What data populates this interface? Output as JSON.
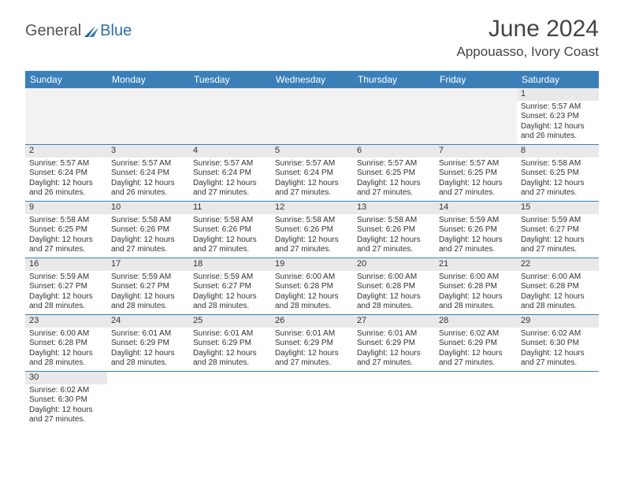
{
  "logo": {
    "text1": "General",
    "text2": "Blue"
  },
  "title": "June 2024",
  "location": "Appouasso, Ivory Coast",
  "colors": {
    "header_bg": "#3b7fb9",
    "header_text": "#ffffff",
    "daynum_bg": "#e9e9e9",
    "border": "#3b7fb9",
    "logo_gray": "#555555",
    "logo_blue": "#2f6fa8",
    "text": "#333333",
    "bg": "#ffffff"
  },
  "days_of_week": [
    "Sunday",
    "Monday",
    "Tuesday",
    "Wednesday",
    "Thursday",
    "Friday",
    "Saturday"
  ],
  "first_day_column": 6,
  "num_days": 30,
  "cells": {
    "1": {
      "sunrise": "Sunrise: 5:57 AM",
      "sunset": "Sunset: 6:23 PM",
      "d1": "Daylight: 12 hours",
      "d2": "and 26 minutes."
    },
    "2": {
      "sunrise": "Sunrise: 5:57 AM",
      "sunset": "Sunset: 6:24 PM",
      "d1": "Daylight: 12 hours",
      "d2": "and 26 minutes."
    },
    "3": {
      "sunrise": "Sunrise: 5:57 AM",
      "sunset": "Sunset: 6:24 PM",
      "d1": "Daylight: 12 hours",
      "d2": "and 26 minutes."
    },
    "4": {
      "sunrise": "Sunrise: 5:57 AM",
      "sunset": "Sunset: 6:24 PM",
      "d1": "Daylight: 12 hours",
      "d2": "and 27 minutes."
    },
    "5": {
      "sunrise": "Sunrise: 5:57 AM",
      "sunset": "Sunset: 6:24 PM",
      "d1": "Daylight: 12 hours",
      "d2": "and 27 minutes."
    },
    "6": {
      "sunrise": "Sunrise: 5:57 AM",
      "sunset": "Sunset: 6:25 PM",
      "d1": "Daylight: 12 hours",
      "d2": "and 27 minutes."
    },
    "7": {
      "sunrise": "Sunrise: 5:57 AM",
      "sunset": "Sunset: 6:25 PM",
      "d1": "Daylight: 12 hours",
      "d2": "and 27 minutes."
    },
    "8": {
      "sunrise": "Sunrise: 5:58 AM",
      "sunset": "Sunset: 6:25 PM",
      "d1": "Daylight: 12 hours",
      "d2": "and 27 minutes."
    },
    "9": {
      "sunrise": "Sunrise: 5:58 AM",
      "sunset": "Sunset: 6:25 PM",
      "d1": "Daylight: 12 hours",
      "d2": "and 27 minutes."
    },
    "10": {
      "sunrise": "Sunrise: 5:58 AM",
      "sunset": "Sunset: 6:26 PM",
      "d1": "Daylight: 12 hours",
      "d2": "and 27 minutes."
    },
    "11": {
      "sunrise": "Sunrise: 5:58 AM",
      "sunset": "Sunset: 6:26 PM",
      "d1": "Daylight: 12 hours",
      "d2": "and 27 minutes."
    },
    "12": {
      "sunrise": "Sunrise: 5:58 AM",
      "sunset": "Sunset: 6:26 PM",
      "d1": "Daylight: 12 hours",
      "d2": "and 27 minutes."
    },
    "13": {
      "sunrise": "Sunrise: 5:58 AM",
      "sunset": "Sunset: 6:26 PM",
      "d1": "Daylight: 12 hours",
      "d2": "and 27 minutes."
    },
    "14": {
      "sunrise": "Sunrise: 5:59 AM",
      "sunset": "Sunset: 6:26 PM",
      "d1": "Daylight: 12 hours",
      "d2": "and 27 minutes."
    },
    "15": {
      "sunrise": "Sunrise: 5:59 AM",
      "sunset": "Sunset: 6:27 PM",
      "d1": "Daylight: 12 hours",
      "d2": "and 27 minutes."
    },
    "16": {
      "sunrise": "Sunrise: 5:59 AM",
      "sunset": "Sunset: 6:27 PM",
      "d1": "Daylight: 12 hours",
      "d2": "and 28 minutes."
    },
    "17": {
      "sunrise": "Sunrise: 5:59 AM",
      "sunset": "Sunset: 6:27 PM",
      "d1": "Daylight: 12 hours",
      "d2": "and 28 minutes."
    },
    "18": {
      "sunrise": "Sunrise: 5:59 AM",
      "sunset": "Sunset: 6:27 PM",
      "d1": "Daylight: 12 hours",
      "d2": "and 28 minutes."
    },
    "19": {
      "sunrise": "Sunrise: 6:00 AM",
      "sunset": "Sunset: 6:28 PM",
      "d1": "Daylight: 12 hours",
      "d2": "and 28 minutes."
    },
    "20": {
      "sunrise": "Sunrise: 6:00 AM",
      "sunset": "Sunset: 6:28 PM",
      "d1": "Daylight: 12 hours",
      "d2": "and 28 minutes."
    },
    "21": {
      "sunrise": "Sunrise: 6:00 AM",
      "sunset": "Sunset: 6:28 PM",
      "d1": "Daylight: 12 hours",
      "d2": "and 28 minutes."
    },
    "22": {
      "sunrise": "Sunrise: 6:00 AM",
      "sunset": "Sunset: 6:28 PM",
      "d1": "Daylight: 12 hours",
      "d2": "and 28 minutes."
    },
    "23": {
      "sunrise": "Sunrise: 6:00 AM",
      "sunset": "Sunset: 6:28 PM",
      "d1": "Daylight: 12 hours",
      "d2": "and 28 minutes."
    },
    "24": {
      "sunrise": "Sunrise: 6:01 AM",
      "sunset": "Sunset: 6:29 PM",
      "d1": "Daylight: 12 hours",
      "d2": "and 28 minutes."
    },
    "25": {
      "sunrise": "Sunrise: 6:01 AM",
      "sunset": "Sunset: 6:29 PM",
      "d1": "Daylight: 12 hours",
      "d2": "and 28 minutes."
    },
    "26": {
      "sunrise": "Sunrise: 6:01 AM",
      "sunset": "Sunset: 6:29 PM",
      "d1": "Daylight: 12 hours",
      "d2": "and 27 minutes."
    },
    "27": {
      "sunrise": "Sunrise: 6:01 AM",
      "sunset": "Sunset: 6:29 PM",
      "d1": "Daylight: 12 hours",
      "d2": "and 27 minutes."
    },
    "28": {
      "sunrise": "Sunrise: 6:02 AM",
      "sunset": "Sunset: 6:29 PM",
      "d1": "Daylight: 12 hours",
      "d2": "and 27 minutes."
    },
    "29": {
      "sunrise": "Sunrise: 6:02 AM",
      "sunset": "Sunset: 6:30 PM",
      "d1": "Daylight: 12 hours",
      "d2": "and 27 minutes."
    },
    "30": {
      "sunrise": "Sunrise: 6:02 AM",
      "sunset": "Sunset: 6:30 PM",
      "d1": "Daylight: 12 hours",
      "d2": "and 27 minutes."
    }
  }
}
